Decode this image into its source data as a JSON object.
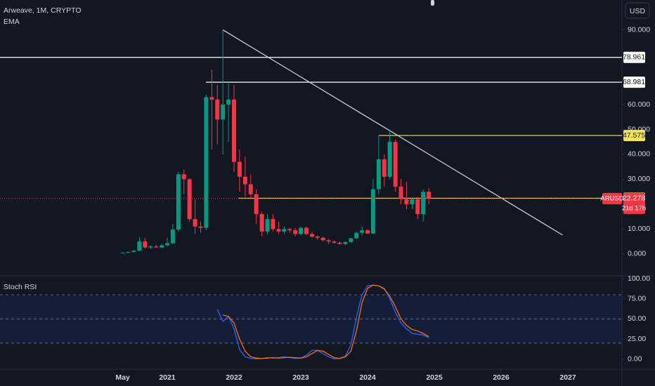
{
  "chart_data": [
    {
      "type": "candlestick",
      "title": "Arweave, 1M, CRYPTO",
      "indicator": "EMA",
      "symbol": "ARUSD",
      "countdown": "21d 17h",
      "x": [
        2020.333,
        2020.417,
        2020.5,
        2020.583,
        2020.667,
        2020.75,
        2020.833,
        2020.917,
        2021,
        2021.083,
        2021.167,
        2021.25,
        2021.333,
        2021.417,
        2021.5,
        2021.583,
        2021.667,
        2021.75,
        2021.833,
        2021.917,
        2022,
        2022.083,
        2022.167,
        2022.25,
        2022.333,
        2022.417,
        2022.5,
        2022.583,
        2022.667,
        2022.75,
        2022.833,
        2022.917,
        2023,
        2023.083,
        2023.167,
        2023.25,
        2023.333,
        2023.417,
        2023.5,
        2023.583,
        2023.667,
        2023.75,
        2023.833,
        2023.917,
        2024,
        2024.083,
        2024.167,
        2024.25,
        2024.333,
        2024.417,
        2024.5,
        2024.583,
        2024.667,
        2024.75,
        2024.833,
        2024.917
      ],
      "open": [
        0.4,
        0.5,
        0.8,
        1.3,
        5.0,
        2.6,
        3.0,
        2.6,
        3.5,
        4.3,
        9.8,
        32,
        30,
        14,
        11,
        10.5,
        63,
        62,
        54,
        60,
        62,
        37,
        31,
        28,
        24,
        16,
        9,
        14,
        10,
        9,
        10,
        9.5,
        8,
        10.5,
        8,
        7,
        6.5,
        5.5,
        5,
        4.5,
        4,
        4.8,
        6.3,
        8.5,
        9.5,
        8.2,
        26,
        38,
        31,
        45,
        27,
        22,
        20,
        22,
        16,
        25
      ],
      "high": [
        0.6,
        0.9,
        1.6,
        6.8,
        6.5,
        3.5,
        3.6,
        4.0,
        6.5,
        12,
        33,
        34,
        30.5,
        22,
        13,
        64,
        74,
        68,
        90,
        69,
        68,
        42,
        39,
        32,
        26,
        17,
        16,
        16,
        13,
        11,
        10.5,
        10.5,
        11,
        11,
        9,
        7.5,
        7,
        6,
        5.5,
        5,
        5,
        6.5,
        9,
        11,
        10,
        30,
        47.5,
        40,
        50,
        46,
        30,
        29,
        22,
        23,
        26,
        26.5
      ],
      "low": [
        0.3,
        0.4,
        0.7,
        1.0,
        2.2,
        2.0,
        2.4,
        2.3,
        3.0,
        4.0,
        9.0,
        24,
        13,
        8,
        8.5,
        9.5,
        42,
        44,
        40,
        45,
        33,
        25,
        23,
        22,
        12,
        7,
        8,
        9,
        8,
        8,
        8.5,
        7,
        7.5,
        7.5,
        6.5,
        5.5,
        5,
        4,
        4.2,
        3.8,
        3.5,
        4.6,
        6,
        7.5,
        8,
        8,
        24,
        27,
        30,
        25,
        20,
        18,
        18,
        14,
        13,
        20
      ],
      "close": [
        0.5,
        0.8,
        1.3,
        5.0,
        2.6,
        3.0,
        2.6,
        3.5,
        4.3,
        9.8,
        32,
        30,
        14,
        11,
        10.5,
        63,
        62,
        54,
        60,
        62,
        37,
        31,
        28,
        24,
        16,
        9,
        14,
        10,
        9,
        10,
        9.5,
        8,
        10.5,
        8,
        7,
        6.5,
        5.5,
        5,
        4.5,
        4,
        4.8,
        6.3,
        8.5,
        9.5,
        8.2,
        26,
        38,
        31,
        45,
        27,
        22,
        20,
        22,
        16,
        25,
        22.278
      ],
      "up_color": "#089981",
      "down_color": "#f23645",
      "levels": [
        {
          "value": 78.961,
          "from": 2018.495,
          "color": "#ffffff"
        },
        {
          "value": 68.981,
          "from": 2021.58,
          "color": "#ffffff"
        },
        {
          "value": 47.575,
          "from": 2024.17,
          "color": "#f7e35a"
        },
        {
          "value": 22.385,
          "from": 2022.07,
          "color": "#f7e35a"
        }
      ],
      "trendline": {
        "x": [
          2021.833,
          2026.92
        ],
        "y": [
          90,
          7.6
        ],
        "color": "#d1d4dc"
      },
      "xlim": [
        2018.495,
        2027.81
      ],
      "xticks": [
        {
          "value": 2020.333,
          "label": "May"
        },
        2021,
        2022,
        2023,
        2024,
        2025,
        2026,
        2027
      ],
      "ylim": [
        -8.5,
        102
      ],
      "yticks": [
        {
          "value": 0,
          "label": "0.000"
        },
        {
          "value": 10,
          "label": "10.000"
        },
        {
          "value": 30,
          "label": "30.000"
        },
        {
          "value": 40,
          "label": "40.000"
        },
        {
          "value": 50,
          "label": "50.000"
        },
        {
          "value": 60,
          "label": "60.000"
        },
        {
          "value": 90,
          "label": "90.000"
        }
      ],
      "currency": "USD"
    },
    {
      "type": "line",
      "title": "Stoch RSI",
      "series": [
        {
          "color": "#2962ff",
          "values": [
            null,
            null,
            null,
            null,
            null,
            null,
            null,
            null,
            null,
            null,
            null,
            null,
            null,
            null,
            null,
            null,
            null,
            62,
            47,
            53,
            38,
            12,
            3,
            1,
            0.5,
            1,
            2,
            1.5,
            2,
            3,
            2,
            1,
            1.5,
            5,
            11,
            11,
            7,
            3,
            0.5,
            1,
            4,
            18,
            52,
            80,
            91,
            92,
            91,
            88,
            75,
            58,
            45,
            38,
            32,
            31,
            30,
            27
          ]
        },
        {
          "color": "#ff6d00",
          "values": [
            null,
            null,
            null,
            null,
            null,
            null,
            null,
            null,
            null,
            null,
            null,
            null,
            null,
            null,
            null,
            null,
            null,
            null,
            55,
            53,
            45,
            25,
            10,
            3,
            1.5,
            1,
            1.5,
            2,
            1.5,
            2,
            2.5,
            2,
            1.5,
            3,
            7,
            11,
            10,
            6,
            2,
            1,
            3,
            10,
            35,
            70,
            88,
            92,
            91,
            87,
            78,
            65,
            50,
            42,
            37,
            35,
            32,
            28
          ]
        }
      ],
      "band": [
        20,
        80
      ],
      "levels": [
        80,
        50,
        20
      ],
      "ylim": [
        -11.4,
        102.6
      ],
      "yticks": [
        {
          "value": 100,
          "label": "100.00"
        },
        {
          "value": 75,
          "label": "75.00"
        },
        {
          "value": 50,
          "label": "50.00"
        },
        {
          "value": 25,
          "label": "25.00"
        },
        {
          "value": 0,
          "label": "0.00"
        }
      ]
    }
  ]
}
